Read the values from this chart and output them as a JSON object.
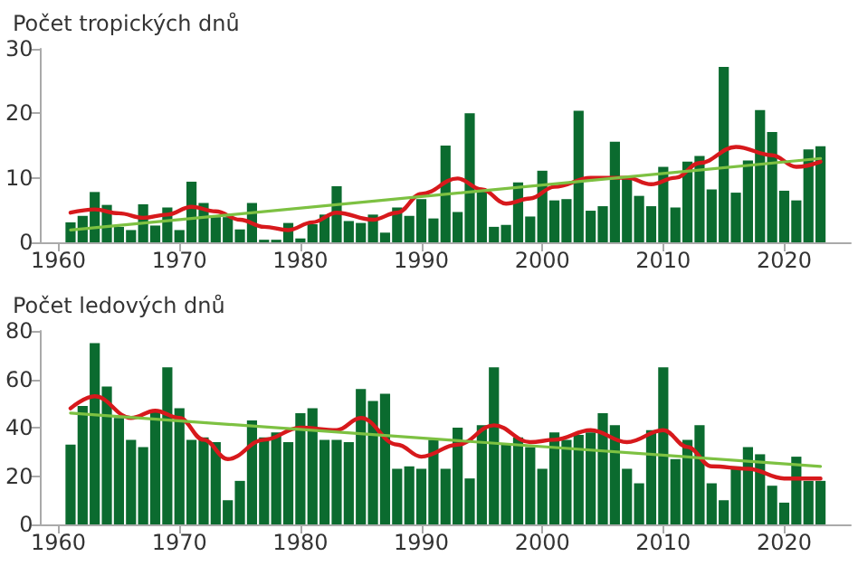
{
  "chart_data": [
    {
      "type": "bar",
      "title": "Počet tropických dnů",
      "x": [
        1961,
        1962,
        1963,
        1964,
        1965,
        1966,
        1967,
        1968,
        1969,
        1970,
        1971,
        1972,
        1973,
        1974,
        1975,
        1976,
        1977,
        1978,
        1979,
        1980,
        1981,
        1982,
        1983,
        1984,
        1985,
        1986,
        1987,
        1988,
        1989,
        1990,
        1991,
        1992,
        1993,
        1994,
        1995,
        1996,
        1997,
        1998,
        1999,
        2000,
        2001,
        2002,
        2003,
        2004,
        2005,
        2006,
        2007,
        2008,
        2009,
        2010,
        2011,
        2012,
        2013,
        2014,
        2015,
        2016,
        2017,
        2018,
        2019,
        2020,
        2021,
        2022,
        2023
      ],
      "series": [
        {
          "color": "#0b6b2f",
          "values": [
            3.1,
            4.1,
            7.8,
            5.8,
            2.4,
            1.9,
            5.9,
            2.6,
            5.4,
            1.9,
            9.4,
            6.1,
            3.9,
            3.9,
            2.0,
            6.1,
            0.4,
            0.4,
            3.0,
            0.6,
            2.8,
            4.3,
            8.7,
            3.3,
            3.0,
            4.3,
            1.5,
            5.4,
            4.1,
            6.7,
            3.7,
            15.0,
            4.7,
            20.0,
            8.0,
            2.4,
            2.7,
            9.3,
            4.0,
            11.1,
            6.5,
            6.7,
            20.4,
            4.9,
            5.6,
            15.6,
            10.2,
            7.2,
            5.6,
            11.7,
            5.4,
            12.5,
            13.4,
            8.2,
            27.2,
            7.7,
            12.7,
            20.5,
            17.1,
            8.0,
            6.5,
            14.4,
            14.9
          ]
        },
        {
          "type": "line",
          "color": "#d7191c",
          "x": [
            1961,
            1963,
            1965,
            1967,
            1969,
            1971,
            1973,
            1975,
            1977,
            1979,
            1981,
            1983,
            1986,
            1988,
            1990,
            1993,
            1995,
            1997,
            1999,
            2001,
            2004,
            2007,
            2009,
            2011,
            2013,
            2016,
            2019,
            2021,
            2023
          ],
          "values": [
            4.6,
            5.1,
            4.5,
            3.8,
            4.3,
            5.5,
            4.8,
            3.5,
            2.4,
            1.9,
            3.1,
            4.6,
            3.5,
            4.6,
            7.5,
            9.9,
            8.2,
            6.0,
            6.8,
            8.6,
            10.0,
            10.0,
            9.0,
            10.0,
            12.3,
            14.8,
            13.5,
            11.7,
            12.5
          ]
        },
        {
          "type": "line",
          "color": "#7dc142",
          "x": [
            1961,
            2023
          ],
          "values": [
            1.9,
            13.0
          ]
        }
      ],
      "xlim": [
        1958.5,
        2025.5
      ],
      "xticks": [
        1960,
        1970,
        1980,
        1990,
        2000,
        2010,
        2020
      ],
      "ylim": [
        0,
        30
      ],
      "yticks": [
        0,
        10,
        20,
        30
      ]
    },
    {
      "type": "bar",
      "title": "Počet ledových dnů",
      "x": [
        1961,
        1962,
        1963,
        1964,
        1965,
        1966,
        1967,
        1968,
        1969,
        1970,
        1971,
        1972,
        1973,
        1974,
        1975,
        1976,
        1977,
        1978,
        1979,
        1980,
        1981,
        1982,
        1983,
        1984,
        1985,
        1986,
        1987,
        1988,
        1989,
        1990,
        1991,
        1992,
        1993,
        1994,
        1995,
        1996,
        1997,
        1998,
        1999,
        2000,
        2001,
        2002,
        2003,
        2004,
        2005,
        2006,
        2007,
        2008,
        2009,
        2010,
        2011,
        2012,
        2013,
        2014,
        2015,
        2016,
        2017,
        2018,
        2019,
        2020,
        2021,
        2022,
        2023
      ],
      "series": [
        {
          "color": "#0b6b2f",
          "values": [
            33,
            49,
            75,
            57,
            44,
            35,
            32,
            47,
            65,
            48,
            35,
            36,
            34,
            10,
            18,
            43,
            36,
            38,
            34,
            46,
            48,
            35,
            35,
            34,
            56,
            51,
            54,
            23,
            24,
            23,
            35,
            23,
            40,
            19,
            41,
            65,
            33,
            36,
            32,
            23,
            38,
            35,
            37,
            38,
            46,
            41,
            23,
            17,
            39,
            65,
            27,
            35,
            41,
            17,
            10,
            24,
            32,
            29,
            16,
            9,
            28,
            18,
            18
          ]
        },
        {
          "type": "line",
          "color": "#d7191c",
          "x": [
            1961,
            1963,
            1966,
            1968,
            1970,
            1972,
            1974,
            1977,
            1980,
            1983,
            1985,
            1988,
            1990,
            1993,
            1996,
            1999,
            2001,
            2004,
            2007,
            2010,
            2012,
            2014,
            2017,
            2020,
            2023
          ],
          "values": [
            48,
            53,
            44,
            47,
            44,
            35,
            27,
            35,
            40,
            39,
            44,
            33,
            28,
            33,
            41,
            34,
            35,
            39,
            34,
            39,
            32,
            24,
            23,
            19,
            19
          ]
        },
        {
          "type": "line",
          "color": "#7dc142",
          "x": [
            1961,
            2023
          ],
          "values": [
            46,
            24
          ]
        }
      ],
      "xlim": [
        1958.5,
        2025.5
      ],
      "xticks": [
        1960,
        1970,
        1980,
        1990,
        2000,
        2010,
        2020
      ],
      "ylim": [
        0,
        80
      ],
      "yticks": [
        0,
        20,
        40,
        60,
        80
      ]
    }
  ]
}
